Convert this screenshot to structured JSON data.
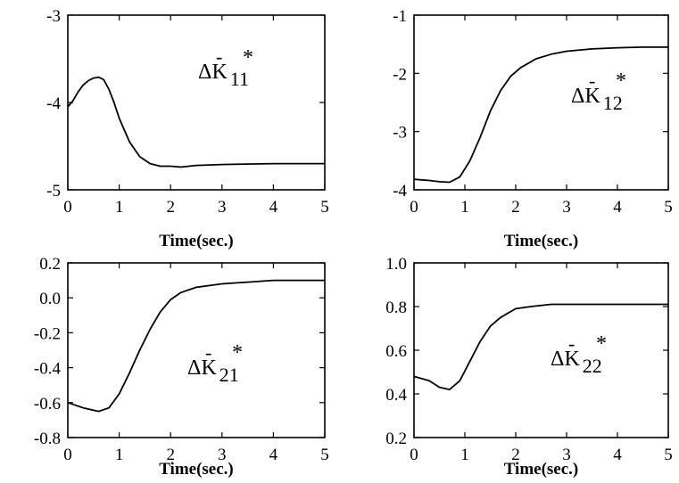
{
  "chart_data": [
    {
      "type": "line",
      "annotation": {
        "delta": "Δ",
        "symbol": "K",
        "bar": "-",
        "star": "*",
        "sub": "11"
      },
      "xlabel": "Time(sec.)",
      "xlim": [
        0,
        5
      ],
      "ylim": [
        -5,
        -3
      ],
      "xticks": [
        0,
        1,
        2,
        3,
        4,
        5
      ],
      "yticks": [
        -3,
        -4,
        -5
      ],
      "x": [
        0,
        0.1,
        0.2,
        0.3,
        0.4,
        0.5,
        0.6,
        0.7,
        0.8,
        0.9,
        1.0,
        1.2,
        1.4,
        1.6,
        1.8,
        2.0,
        2.2,
        2.5,
        3.0,
        4.0,
        5.0
      ],
      "y": [
        -4.05,
        -3.98,
        -3.88,
        -3.8,
        -3.75,
        -3.72,
        -3.71,
        -3.74,
        -3.85,
        -4.0,
        -4.18,
        -4.45,
        -4.62,
        -4.7,
        -4.73,
        -4.73,
        -4.74,
        -4.72,
        -4.71,
        -4.7,
        -4.7
      ]
    },
    {
      "type": "line",
      "annotation": {
        "delta": "Δ",
        "symbol": "K",
        "bar": "-",
        "star": "*",
        "sub": "12"
      },
      "xlabel": "Time(sec.)",
      "xlim": [
        0,
        5
      ],
      "ylim": [
        -4,
        -1
      ],
      "xticks": [
        0,
        1,
        2,
        3,
        4,
        5
      ],
      "yticks": [
        -1,
        -2,
        -3,
        -4
      ],
      "x": [
        0,
        0.3,
        0.5,
        0.7,
        0.9,
        1.1,
        1.3,
        1.5,
        1.7,
        1.9,
        2.1,
        2.4,
        2.7,
        3.0,
        3.5,
        4.0,
        4.5,
        5.0
      ],
      "y": [
        -3.82,
        -3.84,
        -3.86,
        -3.87,
        -3.78,
        -3.5,
        -3.1,
        -2.65,
        -2.3,
        -2.05,
        -1.9,
        -1.75,
        -1.67,
        -1.62,
        -1.58,
        -1.56,
        -1.55,
        -1.55
      ]
    },
    {
      "type": "line",
      "annotation": {
        "delta": "Δ",
        "symbol": "K",
        "bar": "-",
        "star": "*",
        "sub": "21"
      },
      "xlabel": "Time(sec.)",
      "xlim": [
        0,
        5
      ],
      "ylim": [
        -0.8,
        0.2
      ],
      "xticks": [
        0,
        1,
        2,
        3,
        4,
        5
      ],
      "yticks": [
        "0.2",
        "0.0",
        "-0.2",
        "-0.4",
        "-0.6",
        "-0.8"
      ],
      "x": [
        0,
        0.3,
        0.6,
        0.8,
        1.0,
        1.2,
        1.4,
        1.6,
        1.8,
        2.0,
        2.2,
        2.5,
        3.0,
        3.5,
        4.0,
        4.5,
        5.0
      ],
      "y": [
        -0.6,
        -0.63,
        -0.65,
        -0.63,
        -0.55,
        -0.43,
        -0.3,
        -0.18,
        -0.08,
        -0.01,
        0.03,
        0.06,
        0.08,
        0.09,
        0.1,
        0.1,
        0.1
      ]
    },
    {
      "type": "line",
      "annotation": {
        "delta": "Δ",
        "symbol": "K",
        "bar": "-",
        "star": "*",
        "sub": "22"
      },
      "xlabel": "Time(sec.)",
      "xlim": [
        0,
        5
      ],
      "ylim": [
        0.2,
        1.0
      ],
      "xticks": [
        0,
        1,
        2,
        3,
        4,
        5
      ],
      "yticks": [
        "1.0",
        "0.8",
        "0.6",
        "0.4",
        "0.2"
      ],
      "x": [
        0,
        0.3,
        0.5,
        0.7,
        0.9,
        1.1,
        1.3,
        1.5,
        1.7,
        2.0,
        2.3,
        2.7,
        3.0,
        4.0,
        5.0
      ],
      "y": [
        0.48,
        0.46,
        0.43,
        0.42,
        0.46,
        0.55,
        0.64,
        0.71,
        0.75,
        0.79,
        0.8,
        0.81,
        0.81,
        0.81,
        0.81
      ]
    }
  ]
}
